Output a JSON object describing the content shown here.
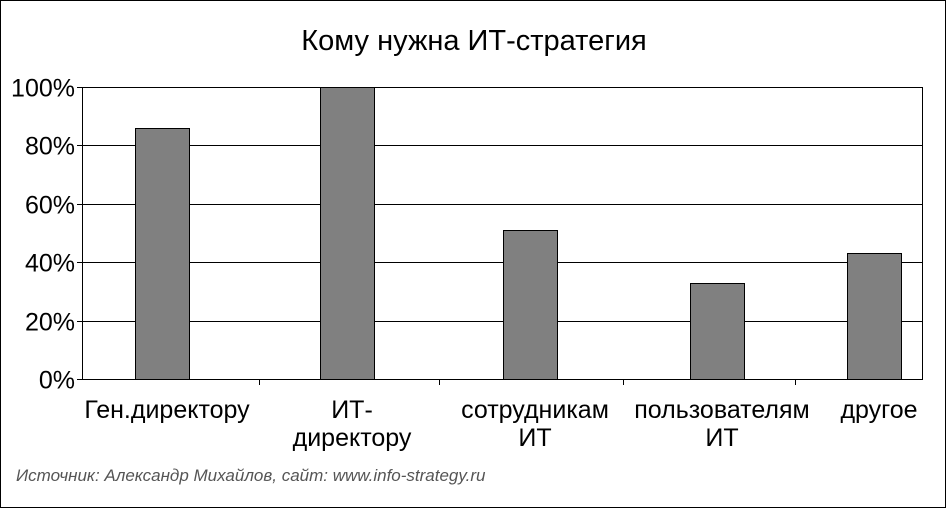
{
  "chart_data": {
    "type": "bar",
    "title": "Кому нужна ИТ-стратегия",
    "categories": [
      [
        "Ген.директору"
      ],
      [
        "ИТ-",
        "директору"
      ],
      [
        "сотрудникам",
        "ИТ"
      ],
      [
        "пользователям",
        "ИТ"
      ],
      [
        "другое"
      ]
    ],
    "values": [
      86,
      100,
      51,
      33,
      43
    ],
    "ylim": [
      0,
      100
    ],
    "y_ticks": [
      {
        "value": 0,
        "label": "0%"
      },
      {
        "value": 20,
        "label": "20%"
      },
      {
        "value": 40,
        "label": "40%"
      },
      {
        "value": 60,
        "label": "60%"
      },
      {
        "value": 80,
        "label": "80%"
      },
      {
        "value": 100,
        "label": "100%"
      }
    ],
    "grid": true,
    "bar_color": "#808080",
    "xlabel": "",
    "ylabel": ""
  },
  "source": "Источник: Александр Михайлов, сайт: www.info-strategy.ru"
}
